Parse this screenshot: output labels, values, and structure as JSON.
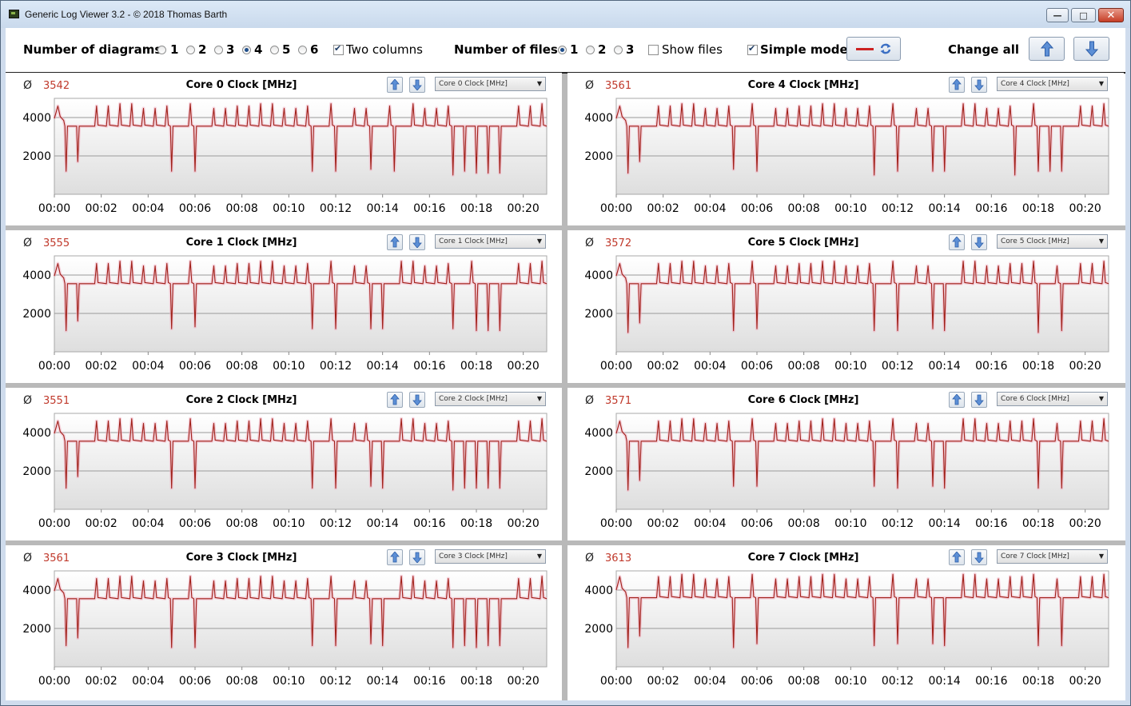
{
  "window": {
    "title": "Generic Log Viewer 3.2 - © 2018 Thomas Barth",
    "minimize_glyph": "—",
    "maximize_glyph": "□",
    "close_glyph": "✕"
  },
  "toolbar": {
    "diagrams_label": "Number of diagrams",
    "diagram_options": [
      "1",
      "2",
      "3",
      "4",
      "5",
      "6"
    ],
    "diagrams_selected": "4",
    "two_columns_label": "Two columns",
    "two_columns_checked": true,
    "files_label": "Number of files",
    "file_options": [
      "1",
      "2",
      "3"
    ],
    "files_selected": "1",
    "show_files_label": "Show files",
    "show_files_checked": false,
    "simple_mode_label": "Simple mode",
    "simple_mode_checked": true,
    "change_all_label": "Change all",
    "line_color": "#cc2222"
  },
  "chart_common": {
    "avg_symbol": "Ø",
    "y_ticks": [
      "2000",
      "4000"
    ],
    "x_ticks": [
      "00:00",
      "00:02",
      "00:04",
      "00:06",
      "00:08",
      "00:10",
      "00:12",
      "00:14",
      "00:16",
      "00:18",
      "00:20"
    ],
    "line_color": "#a02018",
    "halo_color": "#f3b2c4",
    "ref_line": 4000
  },
  "panels": [
    {
      "title": "Core 0 Clock [MHz]",
      "average": "3542",
      "dropdown": "Core 0 Clock [MHz]"
    },
    {
      "title": "Core 4 Clock [MHz]",
      "average": "3561",
      "dropdown": "Core 4 Clock [MHz]"
    },
    {
      "title": "Core 1 Clock [MHz]",
      "average": "3555",
      "dropdown": "Core 1 Clock [MHz]"
    },
    {
      "title": "Core 5 Clock [MHz]",
      "average": "3572",
      "dropdown": "Core 5 Clock [MHz]"
    },
    {
      "title": "Core 2 Clock [MHz]",
      "average": "3551",
      "dropdown": "Core 2 Clock [MHz]"
    },
    {
      "title": "Core 6 Clock [MHz]",
      "average": "3571",
      "dropdown": "Core 6 Clock [MHz]"
    },
    {
      "title": "Core 3 Clock [MHz]",
      "average": "3561",
      "dropdown": "Core 3 Clock [MHz]"
    },
    {
      "title": "Core 7 Clock [MHz]",
      "average": "3613",
      "dropdown": "Core 7 Clock [MHz]"
    }
  ],
  "chart_data": [
    {
      "type": "line",
      "title": "Core 0 Clock [MHz]",
      "x_unit": "mm:ss",
      "xlim": [
        "00:00",
        "00:21"
      ],
      "ylim": [
        0,
        5000
      ],
      "baseline": 3550,
      "peaks": 4600,
      "dips": [
        {
          "x": "00:00.5",
          "y": 1200
        },
        {
          "x": "00:01",
          "y": 1700
        },
        {
          "x": "00:05",
          "y": 1200
        },
        {
          "x": "00:06",
          "y": 1200
        },
        {
          "x": "00:11",
          "y": 1200
        },
        {
          "x": "00:12",
          "y": 1200
        },
        {
          "x": "00:13.5",
          "y": 1300
        },
        {
          "x": "00:14.5",
          "y": 1200
        },
        {
          "x": "00:17",
          "y": 1000
        },
        {
          "x": "00:17.5",
          "y": 1200
        },
        {
          "x": "00:18",
          "y": 1100
        },
        {
          "x": "00:18.5",
          "y": 1100
        },
        {
          "x": "00:19",
          "y": 1100
        }
      ]
    },
    {
      "type": "line",
      "title": "Core 4 Clock [MHz]",
      "x_unit": "mm:ss",
      "xlim": [
        "00:00",
        "00:21"
      ],
      "ylim": [
        0,
        5000
      ],
      "baseline": 3550,
      "peaks": 4600,
      "dips": [
        {
          "x": "00:00.5",
          "y": 1100
        },
        {
          "x": "00:01",
          "y": 1700
        },
        {
          "x": "00:05",
          "y": 1300
        },
        {
          "x": "00:06",
          "y": 1200
        },
        {
          "x": "00:11",
          "y": 1000
        },
        {
          "x": "00:12",
          "y": 1200
        },
        {
          "x": "00:13.5",
          "y": 1200
        },
        {
          "x": "00:14",
          "y": 1200
        },
        {
          "x": "00:17",
          "y": 1000
        },
        {
          "x": "00:18",
          "y": 1200
        },
        {
          "x": "00:18.5",
          "y": 1200
        },
        {
          "x": "00:19",
          "y": 1200
        }
      ]
    },
    {
      "type": "line",
      "title": "Core 1 Clock [MHz]",
      "x_unit": "mm:ss",
      "xlim": [
        "00:00",
        "00:21"
      ],
      "ylim": [
        0,
        5000
      ],
      "baseline": 3550,
      "peaks": 4600,
      "dips": [
        {
          "x": "00:00.5",
          "y": 1100
        },
        {
          "x": "00:01",
          "y": 1600
        },
        {
          "x": "00:05",
          "y": 1200
        },
        {
          "x": "00:06",
          "y": 1300
        },
        {
          "x": "00:11",
          "y": 1200
        },
        {
          "x": "00:12",
          "y": 1200
        },
        {
          "x": "00:13.5",
          "y": 1200
        },
        {
          "x": "00:14",
          "y": 1200
        },
        {
          "x": "00:17",
          "y": 1200
        },
        {
          "x": "00:18",
          "y": 1100
        },
        {
          "x": "00:18.5",
          "y": 1100
        },
        {
          "x": "00:19",
          "y": 1100
        }
      ]
    },
    {
      "type": "line",
      "title": "Core 5 Clock [MHz]",
      "x_unit": "mm:ss",
      "xlim": [
        "00:00",
        "00:21"
      ],
      "ylim": [
        0,
        5000
      ],
      "baseline": 3550,
      "peaks": 4600,
      "dips": [
        {
          "x": "00:00.5",
          "y": 1000
        },
        {
          "x": "00:01",
          "y": 1500
        },
        {
          "x": "00:05",
          "y": 1100
        },
        {
          "x": "00:06",
          "y": 1200
        },
        {
          "x": "00:11",
          "y": 1100
        },
        {
          "x": "00:12",
          "y": 1100
        },
        {
          "x": "00:13.5",
          "y": 1200
        },
        {
          "x": "00:14",
          "y": 1100
        },
        {
          "x": "00:18",
          "y": 1000
        },
        {
          "x": "00:19",
          "y": 1100
        }
      ]
    },
    {
      "type": "line",
      "title": "Core 2 Clock [MHz]",
      "x_unit": "mm:ss",
      "xlim": [
        "00:00",
        "00:21"
      ],
      "ylim": [
        0,
        5000
      ],
      "baseline": 3550,
      "peaks": 4600,
      "dips": [
        {
          "x": "00:00.5",
          "y": 1100
        },
        {
          "x": "00:01",
          "y": 1700
        },
        {
          "x": "00:05",
          "y": 1100
        },
        {
          "x": "00:06",
          "y": 1100
        },
        {
          "x": "00:11",
          "y": 1100
        },
        {
          "x": "00:12",
          "y": 1100
        },
        {
          "x": "00:13.5",
          "y": 1200
        },
        {
          "x": "00:14",
          "y": 1100
        },
        {
          "x": "00:17",
          "y": 1000
        },
        {
          "x": "00:17.5",
          "y": 1100
        },
        {
          "x": "00:18",
          "y": 1100
        },
        {
          "x": "00:18.5",
          "y": 1100
        },
        {
          "x": "00:19",
          "y": 1100
        }
      ]
    },
    {
      "type": "line",
      "title": "Core 6 Clock [MHz]",
      "x_unit": "mm:ss",
      "xlim": [
        "00:00",
        "00:21"
      ],
      "ylim": [
        0,
        5000
      ],
      "baseline": 3550,
      "peaks": 4600,
      "dips": [
        {
          "x": "00:00.5",
          "y": 1000
        },
        {
          "x": "00:01",
          "y": 1500
        },
        {
          "x": "00:05",
          "y": 1200
        },
        {
          "x": "00:06",
          "y": 1200
        },
        {
          "x": "00:11",
          "y": 1200
        },
        {
          "x": "00:12",
          "y": 1100
        },
        {
          "x": "00:13.5",
          "y": 1200
        },
        {
          "x": "00:14",
          "y": 1100
        },
        {
          "x": "00:18",
          "y": 1100
        },
        {
          "x": "00:19",
          "y": 1100
        }
      ]
    },
    {
      "type": "line",
      "title": "Core 3 Clock [MHz]",
      "x_unit": "mm:ss",
      "xlim": [
        "00:00",
        "00:21"
      ],
      "ylim": [
        0,
        5000
      ],
      "baseline": 3550,
      "peaks": 4600,
      "dips": [
        {
          "x": "00:00.5",
          "y": 1100
        },
        {
          "x": "00:01",
          "y": 1500
        },
        {
          "x": "00:05",
          "y": 1000
        },
        {
          "x": "00:06",
          "y": 1000
        },
        {
          "x": "00:11",
          "y": 1100
        },
        {
          "x": "00:12",
          "y": 1100
        },
        {
          "x": "00:13.5",
          "y": 1200
        },
        {
          "x": "00:14",
          "y": 1100
        },
        {
          "x": "00:17",
          "y": 1000
        },
        {
          "x": "00:17.5",
          "y": 1100
        },
        {
          "x": "00:18",
          "y": 1000
        },
        {
          "x": "00:18.5",
          "y": 1100
        },
        {
          "x": "00:19",
          "y": 1100
        }
      ]
    },
    {
      "type": "line",
      "title": "Core 7 Clock [MHz]",
      "x_unit": "mm:ss",
      "xlim": [
        "00:00",
        "00:21"
      ],
      "ylim": [
        0,
        5000
      ],
      "baseline": 3600,
      "peaks": 4700,
      "dips": [
        {
          "x": "00:00.5",
          "y": 1000
        },
        {
          "x": "00:01",
          "y": 1600
        },
        {
          "x": "00:05",
          "y": 1000
        },
        {
          "x": "00:06",
          "y": 1200
        },
        {
          "x": "00:11",
          "y": 1100
        },
        {
          "x": "00:12",
          "y": 1200
        },
        {
          "x": "00:13.5",
          "y": 1200
        },
        {
          "x": "00:14",
          "y": 1100
        },
        {
          "x": "00:18",
          "y": 1100
        },
        {
          "x": "00:19",
          "y": 1100
        }
      ]
    }
  ]
}
